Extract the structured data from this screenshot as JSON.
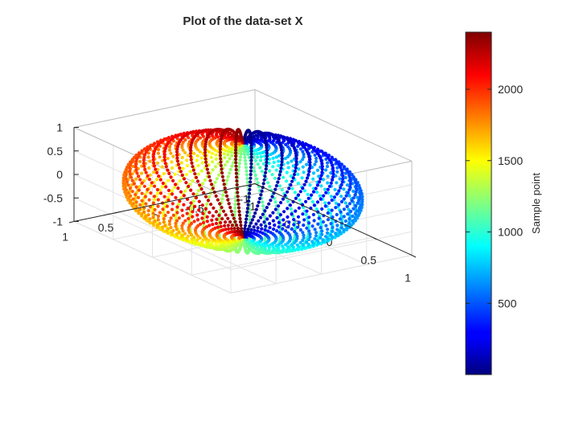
{
  "chart_data": {
    "type": "scatter3d",
    "title": "Plot of the data-set X",
    "xlabel": "",
    "ylabel": "",
    "zlabel": "",
    "xlim": [
      -1,
      1
    ],
    "ylim": [
      -1,
      1
    ],
    "zlim": [
      -1,
      1
    ],
    "grid": true,
    "box": true,
    "x_ticks": [
      "-1",
      "-0.5",
      "0",
      "0.5",
      "1"
    ],
    "y_ticks": [
      "-1",
      "-0.5",
      "0",
      "0.5",
      "1"
    ],
    "z_ticks": [
      "-1",
      "-0.5",
      "0",
      "0.5",
      "1"
    ],
    "series": [
      {
        "shape": "unit sphere",
        "n_points": 2400,
        "n_meridians": 48,
        "points_per_meridian": 50,
        "color_by": "sample index"
      }
    ],
    "colorbar": {
      "label": "Sample point",
      "colormap": "jet",
      "range": [
        1,
        2400
      ],
      "ticks": [
        "500",
        "1000",
        "1500",
        "2000"
      ],
      "placement": "right"
    }
  }
}
